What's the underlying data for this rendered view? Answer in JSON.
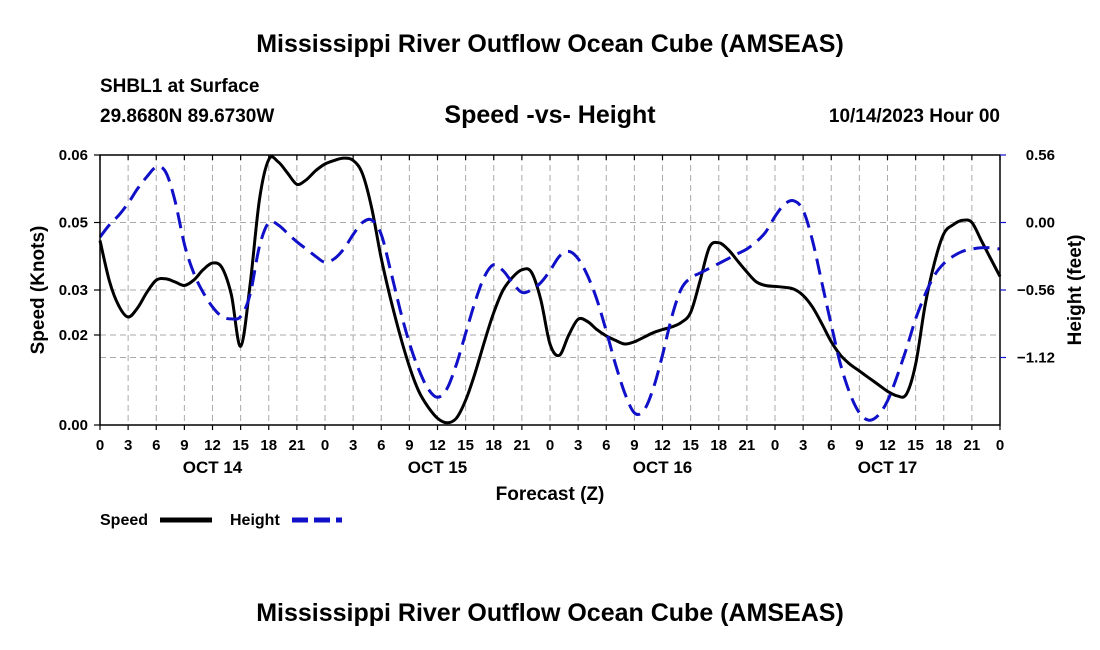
{
  "header": {
    "title": "Mississippi River Outflow Ocean Cube (AMSEAS)",
    "station": "SHBL1 at Surface",
    "coords": "29.8680N  89.6730W",
    "subtitle": "Speed -vs- Height",
    "datetime": "10/14/2023 Hour 00"
  },
  "footer": {
    "title": "Mississippi River Outflow Ocean Cube (AMSEAS)"
  },
  "colors": {
    "speed": "#000000",
    "height": "#1010c8",
    "grid": "#aaaaaa"
  },
  "chart_data": {
    "type": "line",
    "title": "Speed -vs- Height",
    "xlabel": "Forecast (Z)",
    "ylabel": "Speed (Knots)",
    "y2label": "Height (feet)",
    "xlim": [
      0,
      96
    ],
    "ylim": [
      0,
      0.06
    ],
    "y2lim": [
      -1.68,
      0.56
    ],
    "x_ticks": [
      0,
      3,
      6,
      9,
      12,
      15,
      18,
      21,
      24,
      27,
      30,
      33,
      36,
      39,
      42,
      45,
      48,
      51,
      54,
      57,
      60,
      63,
      66,
      69,
      72,
      75,
      78,
      81,
      84,
      87,
      90,
      93,
      96
    ],
    "x_tick_labels": [
      "0",
      "3",
      "6",
      "9",
      "12",
      "15",
      "18",
      "21",
      "0",
      "3",
      "6",
      "9",
      "12",
      "15",
      "18",
      "21",
      "0",
      "3",
      "6",
      "9",
      "12",
      "15",
      "18",
      "21",
      "0",
      "3",
      "6",
      "9",
      "12",
      "15",
      "18",
      "21",
      "0"
    ],
    "date_labels": [
      {
        "x": 12,
        "label": "OCT 14"
      },
      {
        "x": 36,
        "label": "OCT 15"
      },
      {
        "x": 60,
        "label": "OCT 16"
      },
      {
        "x": 84,
        "label": "OCT 17"
      }
    ],
    "y_ticks": [
      {
        "value": 0.0,
        "label": "0.00"
      },
      {
        "value": 0.02,
        "label": "0.02"
      },
      {
        "value": 0.03,
        "label": "0.03"
      },
      {
        "value": 0.045,
        "label": "0.05"
      },
      {
        "value": 0.06,
        "label": "0.06"
      }
    ],
    "y2_ticks": [
      {
        "value": 0.56,
        "label": "0.56"
      },
      {
        "value": 0.0,
        "label": "0.00"
      },
      {
        "value": -0.56,
        "label": "−0.56"
      },
      {
        "value": -1.12,
        "label": "−1.12"
      }
    ],
    "series": [
      {
        "name": "Speed",
        "axis": "left",
        "dash": "solid",
        "points": [
          [
            0,
            0.041
          ],
          [
            1,
            0.032
          ],
          [
            2,
            0.0265
          ],
          [
            3,
            0.024
          ],
          [
            4,
            0.026
          ],
          [
            5,
            0.0295
          ],
          [
            6,
            0.0322
          ],
          [
            7,
            0.0325
          ],
          [
            8,
            0.0318
          ],
          [
            9,
            0.031
          ],
          [
            10,
            0.0322
          ],
          [
            11,
            0.0345
          ],
          [
            12,
            0.036
          ],
          [
            13,
            0.035
          ],
          [
            14,
            0.029
          ],
          [
            15,
            0.0175
          ],
          [
            16,
            0.031
          ],
          [
            17,
            0.05
          ],
          [
            18,
            0.059
          ],
          [
            19,
            0.0585
          ],
          [
            20,
            0.056
          ],
          [
            21,
            0.0535
          ],
          [
            22,
            0.0545
          ],
          [
            23,
            0.0565
          ],
          [
            24,
            0.058
          ],
          [
            25,
            0.0588
          ],
          [
            26,
            0.0593
          ],
          [
            27,
            0.0588
          ],
          [
            28,
            0.0558
          ],
          [
            29,
            0.048
          ],
          [
            30,
            0.037
          ],
          [
            31,
            0.028
          ],
          [
            32,
            0.02
          ],
          [
            33,
            0.013
          ],
          [
            34,
            0.0075
          ],
          [
            35,
            0.004
          ],
          [
            36,
            0.0015
          ],
          [
            37,
            0.0005
          ],
          [
            38,
            0.0015
          ],
          [
            39,
            0.0055
          ],
          [
            40,
            0.0115
          ],
          [
            41,
            0.0185
          ],
          [
            42,
            0.025
          ],
          [
            43,
            0.03
          ],
          [
            44,
            0.0328
          ],
          [
            45,
            0.0345
          ],
          [
            46,
            0.034
          ],
          [
            47,
            0.028
          ],
          [
            48,
            0.018
          ],
          [
            49,
            0.0155
          ],
          [
            50,
            0.02
          ],
          [
            51,
            0.0235
          ],
          [
            52,
            0.023
          ],
          [
            53,
            0.0212
          ],
          [
            54,
            0.0198
          ],
          [
            55,
            0.0188
          ],
          [
            56,
            0.018
          ],
          [
            57,
            0.0185
          ],
          [
            58,
            0.0195
          ],
          [
            59,
            0.0205
          ],
          [
            60,
            0.0212
          ],
          [
            61,
            0.0218
          ],
          [
            62,
            0.0228
          ],
          [
            63,
            0.025
          ],
          [
            64,
            0.032
          ],
          [
            65,
            0.0395
          ],
          [
            66,
            0.0405
          ],
          [
            67,
            0.039
          ],
          [
            68,
            0.0365
          ],
          [
            69,
            0.034
          ],
          [
            70,
            0.0318
          ],
          [
            71,
            0.031
          ],
          [
            72,
            0.0308
          ],
          [
            73,
            0.0306
          ],
          [
            74,
            0.0302
          ],
          [
            75,
            0.0288
          ],
          [
            76,
            0.0262
          ],
          [
            77,
            0.0225
          ],
          [
            78,
            0.0185
          ],
          [
            79,
            0.0155
          ],
          [
            80,
            0.0135
          ],
          [
            81,
            0.012
          ],
          [
            82,
            0.0105
          ],
          [
            83,
            0.009
          ],
          [
            84,
            0.0075
          ],
          [
            85,
            0.0065
          ],
          [
            86,
            0.0068
          ],
          [
            87,
            0.0135
          ],
          [
            88,
            0.0265
          ],
          [
            89,
            0.036
          ],
          [
            90,
            0.0425
          ],
          [
            91,
            0.0445
          ],
          [
            92,
            0.0455
          ],
          [
            93,
            0.045
          ],
          [
            94,
            0.041
          ],
          [
            95,
            0.037
          ],
          [
            96,
            0.033
          ]
        ]
      },
      {
        "name": "Height",
        "axis": "right",
        "dash": "dashed",
        "points": [
          [
            0,
            -0.12
          ],
          [
            1,
            -0.02
          ],
          [
            2,
            0.06
          ],
          [
            3,
            0.16
          ],
          [
            4,
            0.28
          ],
          [
            5,
            0.38
          ],
          [
            6,
            0.46
          ],
          [
            7,
            0.42
          ],
          [
            8,
            0.18
          ],
          [
            9,
            -0.18
          ],
          [
            10,
            -0.42
          ],
          [
            11,
            -0.58
          ],
          [
            12,
            -0.7
          ],
          [
            13,
            -0.78
          ],
          [
            14,
            -0.8
          ],
          [
            15,
            -0.78
          ],
          [
            16,
            -0.6
          ],
          [
            17,
            -0.2
          ],
          [
            18,
            0.0
          ],
          [
            19,
            -0.02
          ],
          [
            20,
            -0.09
          ],
          [
            21,
            -0.16
          ],
          [
            22,
            -0.22
          ],
          [
            23,
            -0.28
          ],
          [
            24,
            -0.33
          ],
          [
            25,
            -0.3
          ],
          [
            26,
            -0.22
          ],
          [
            27,
            -0.1
          ],
          [
            28,
            0.0
          ],
          [
            29,
            0.02
          ],
          [
            30,
            -0.1
          ],
          [
            31,
            -0.4
          ],
          [
            32,
            -0.72
          ],
          [
            33,
            -1.0
          ],
          [
            34,
            -1.22
          ],
          [
            35,
            -1.38
          ],
          [
            36,
            -1.45
          ],
          [
            37,
            -1.38
          ],
          [
            38,
            -1.18
          ],
          [
            39,
            -0.92
          ],
          [
            40,
            -0.66
          ],
          [
            41,
            -0.45
          ],
          [
            42,
            -0.35
          ],
          [
            43,
            -0.4
          ],
          [
            44,
            -0.5
          ],
          [
            45,
            -0.58
          ],
          [
            46,
            -0.56
          ],
          [
            47,
            -0.5
          ],
          [
            48,
            -0.4
          ],
          [
            49,
            -0.28
          ],
          [
            50,
            -0.24
          ],
          [
            51,
            -0.3
          ],
          [
            52,
            -0.44
          ],
          [
            53,
            -0.64
          ],
          [
            54,
            -0.9
          ],
          [
            55,
            -1.18
          ],
          [
            56,
            -1.42
          ],
          [
            57,
            -1.58
          ],
          [
            58,
            -1.56
          ],
          [
            59,
            -1.38
          ],
          [
            60,
            -1.1
          ],
          [
            61,
            -0.78
          ],
          [
            62,
            -0.55
          ],
          [
            63,
            -0.46
          ],
          [
            64,
            -0.42
          ],
          [
            65,
            -0.38
          ],
          [
            66,
            -0.34
          ],
          [
            67,
            -0.3
          ],
          [
            68,
            -0.26
          ],
          [
            69,
            -0.22
          ],
          [
            70,
            -0.16
          ],
          [
            71,
            -0.08
          ],
          [
            72,
            0.05
          ],
          [
            73,
            0.15
          ],
          [
            74,
            0.18
          ],
          [
            75,
            0.1
          ],
          [
            76,
            -0.15
          ],
          [
            77,
            -0.5
          ],
          [
            78,
            -0.85
          ],
          [
            79,
            -1.18
          ],
          [
            80,
            -1.42
          ],
          [
            81,
            -1.58
          ],
          [
            82,
            -1.64
          ],
          [
            83,
            -1.6
          ],
          [
            84,
            -1.48
          ],
          [
            85,
            -1.28
          ],
          [
            86,
            -1.05
          ],
          [
            87,
            -0.8
          ],
          [
            88,
            -0.6
          ],
          [
            89,
            -0.44
          ],
          [
            90,
            -0.34
          ],
          [
            91,
            -0.28
          ],
          [
            92,
            -0.24
          ],
          [
            93,
            -0.22
          ],
          [
            94,
            -0.21
          ],
          [
            95,
            -0.21
          ],
          [
            96,
            -0.22
          ]
        ]
      }
    ],
    "legend": [
      {
        "name": "Speed",
        "label": "Speed"
      },
      {
        "name": "Height",
        "label": "Height"
      }
    ]
  }
}
